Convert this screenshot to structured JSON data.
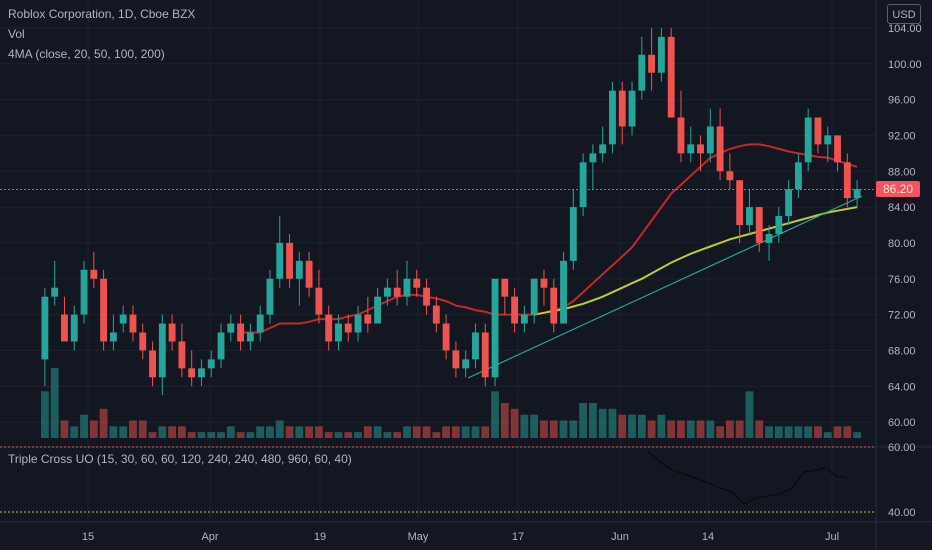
{
  "header": {
    "symbol": "Roblox Corporation, 1D, Cboe BZX",
    "volume_label": "Vol",
    "ma_label": "4MA (close, 20, 50, 100, 200)",
    "currency": "USD"
  },
  "oscillator": {
    "label": "Triple Cross UO (15, 30, 60, 60, 120, 240, 240, 480, 960, 60, 40)",
    "upper_level": "60.00",
    "lower_level": "40.00"
  },
  "price_axis": {
    "ticks": [
      "104.00",
      "100.00",
      "96.00",
      "92.00",
      "88.00",
      "84.00",
      "80.00",
      "76.00",
      "72.00",
      "68.00",
      "64.00",
      "60.00"
    ],
    "current_price": "86.20"
  },
  "time_axis": {
    "labels": [
      "15",
      "Apr",
      "19",
      "May",
      "17",
      "Jun",
      "14",
      "Jul"
    ]
  },
  "colors": {
    "background": "#131722",
    "up": "#26a69a",
    "down": "#ef5350",
    "ma_red": "#c62828",
    "ma_yellow": "#c0ca33",
    "trendline": "#26a69a"
  },
  "chart_data": {
    "type": "candlestick",
    "ylim": [
      58,
      106
    ],
    "series_ohlc": [
      [
        67,
        75,
        64,
        74
      ],
      [
        74,
        78,
        73,
        75
      ],
      [
        72,
        74,
        69,
        69
      ],
      [
        69,
        73,
        68,
        72
      ],
      [
        72,
        78,
        71,
        77
      ],
      [
        77,
        79,
        75,
        76
      ],
      [
        76,
        77,
        68,
        69
      ],
      [
        69,
        72,
        68,
        70
      ],
      [
        71,
        73,
        70,
        72
      ],
      [
        72,
        73,
        69,
        70
      ],
      [
        70,
        71,
        67,
        68
      ],
      [
        68,
        69,
        64,
        65
      ],
      [
        65,
        72,
        63,
        71
      ],
      [
        71,
        72,
        68,
        69
      ],
      [
        69,
        71,
        65,
        66
      ],
      [
        66,
        68,
        64,
        65
      ],
      [
        65,
        67,
        64,
        66
      ],
      [
        66,
        68,
        65,
        67
      ],
      [
        67,
        71,
        66,
        70
      ],
      [
        70,
        72,
        69,
        71
      ],
      [
        71,
        72,
        68,
        69
      ],
      [
        69,
        71,
        68,
        70
      ],
      [
        70,
        73,
        69,
        72
      ],
      [
        72,
        77,
        71,
        76
      ],
      [
        76,
        83,
        75,
        80
      ],
      [
        80,
        81,
        75,
        76
      ],
      [
        76,
        79,
        73,
        78
      ],
      [
        78,
        79,
        74,
        75
      ],
      [
        75,
        77,
        71,
        72
      ],
      [
        72,
        73,
        68,
        69
      ],
      [
        69,
        72,
        68,
        71
      ],
      [
        71,
        72,
        69,
        70
      ],
      [
        70,
        73,
        69,
        72
      ],
      [
        72,
        74,
        70,
        71
      ],
      [
        71,
        75,
        71,
        74
      ],
      [
        74,
        76,
        73,
        75
      ],
      [
        75,
        77,
        73,
        74
      ],
      [
        74,
        78,
        73,
        76
      ],
      [
        76,
        77,
        74,
        75
      ],
      [
        75,
        76,
        72,
        73
      ],
      [
        73,
        74,
        70,
        71
      ],
      [
        71,
        72,
        67,
        68
      ],
      [
        68,
        69,
        65,
        66
      ],
      [
        66,
        68,
        65,
        67
      ],
      [
        67,
        71,
        66,
        70
      ],
      [
        70,
        71,
        64,
        65
      ],
      [
        65,
        76,
        64,
        76
      ],
      [
        76,
        76,
        72,
        74
      ],
      [
        74,
        75,
        70,
        71
      ],
      [
        71,
        73,
        70,
        72
      ],
      [
        72,
        76,
        71,
        76
      ],
      [
        76,
        77,
        73,
        75
      ],
      [
        75,
        76,
        70,
        71
      ],
      [
        71,
        79,
        71,
        78
      ],
      [
        78,
        86,
        77,
        84
      ],
      [
        84,
        90,
        83,
        89
      ],
      [
        89,
        91,
        86,
        90
      ],
      [
        90,
        93,
        89,
        91
      ],
      [
        91,
        98,
        90,
        97
      ],
      [
        97,
        98,
        91,
        93
      ],
      [
        93,
        98,
        92,
        97
      ],
      [
        97,
        103,
        96,
        101
      ],
      [
        101,
        104,
        97,
        99
      ],
      [
        99,
        104,
        98,
        103
      ],
      [
        103,
        104,
        95,
        94
      ],
      [
        94,
        97,
        89,
        90
      ],
      [
        90,
        93,
        89,
        91
      ],
      [
        91,
        92,
        88,
        90
      ],
      [
        90,
        95,
        89,
        93
      ],
      [
        93,
        95,
        87,
        88
      ],
      [
        88,
        90,
        86,
        87
      ],
      [
        87,
        87,
        80,
        82
      ],
      [
        82,
        86,
        81,
        84
      ],
      [
        84,
        84,
        79,
        80
      ],
      [
        80,
        82,
        78,
        81
      ],
      [
        81,
        84,
        80,
        83
      ],
      [
        83,
        87,
        82,
        86
      ],
      [
        86,
        90,
        85,
        89
      ],
      [
        89,
        95,
        88,
        94
      ],
      [
        94,
        94,
        90,
        91
      ],
      [
        91,
        93,
        89,
        92
      ],
      [
        92,
        92,
        88,
        89
      ],
      [
        89,
        90,
        84,
        85
      ],
      [
        85,
        87,
        84,
        86
      ]
    ],
    "volume": [
      8,
      12,
      3,
      2,
      4,
      3,
      5,
      2,
      2,
      3,
      3,
      1,
      2,
      2,
      2,
      1,
      1,
      1,
      1,
      2,
      1,
      1,
      2,
      2,
      3,
      2,
      2,
      2,
      2,
      1,
      1,
      1,
      1,
      2,
      2,
      1,
      1,
      2,
      2,
      2,
      1,
      2,
      2,
      2,
      2,
      2,
      8,
      6,
      5,
      4,
      4,
      3,
      3,
      3,
      3,
      6,
      6,
      5,
      5,
      4,
      4,
      4,
      3,
      4,
      3,
      3,
      3,
      3,
      3,
      2,
      3,
      3,
      8,
      3,
      2,
      2,
      2,
      2,
      2,
      2,
      1,
      2,
      2,
      1
    ],
    "ma20": [
      null,
      null,
      null,
      null,
      null,
      null,
      null,
      null,
      null,
      null,
      null,
      null,
      null,
      null,
      null,
      null,
      null,
      null,
      null,
      null,
      70,
      70,
      70,
      70.5,
      71,
      71,
      71,
      71.2,
      71.5,
      71.5,
      71.5,
      71.8,
      72,
      72.5,
      73,
      73.5,
      74,
      74.2,
      74.2,
      74,
      73.8,
      73.5,
      73,
      72.8,
      72.5,
      72.3,
      72,
      72,
      72,
      72,
      72,
      72.2,
      72.5,
      72.8,
      73.5,
      74.5,
      75.5,
      76.5,
      77.5,
      78.5,
      79.5,
      81,
      82.5,
      84,
      85.5,
      86.5,
      87.5,
      88.5,
      89.5,
      90,
      90.5,
      90.8,
      91,
      91,
      90.8,
      90.5,
      90.2,
      90,
      89.8,
      89.6,
      89.5,
      89.2,
      88.8,
      88.5
    ],
    "ma50": [
      null,
      null,
      null,
      null,
      null,
      null,
      null,
      null,
      null,
      null,
      null,
      null,
      null,
      null,
      null,
      null,
      null,
      null,
      null,
      null,
      null,
      null,
      null,
      null,
      null,
      null,
      null,
      null,
      null,
      null,
      null,
      null,
      null,
      null,
      null,
      null,
      null,
      null,
      null,
      null,
      null,
      null,
      null,
      null,
      null,
      null,
      null,
      null,
      null,
      null,
      72,
      72.2,
      72.4,
      72.6,
      72.9,
      73.2,
      73.6,
      74,
      74.5,
      75,
      75.5,
      76,
      76.6,
      77.2,
      77.8,
      78.3,
      78.8,
      79.2,
      79.6,
      80,
      80.4,
      80.7,
      81,
      81.3,
      81.6,
      81.9,
      82.2,
      82.5,
      82.8,
      83.1,
      83.4,
      83.6,
      83.8,
      84
    ]
  }
}
